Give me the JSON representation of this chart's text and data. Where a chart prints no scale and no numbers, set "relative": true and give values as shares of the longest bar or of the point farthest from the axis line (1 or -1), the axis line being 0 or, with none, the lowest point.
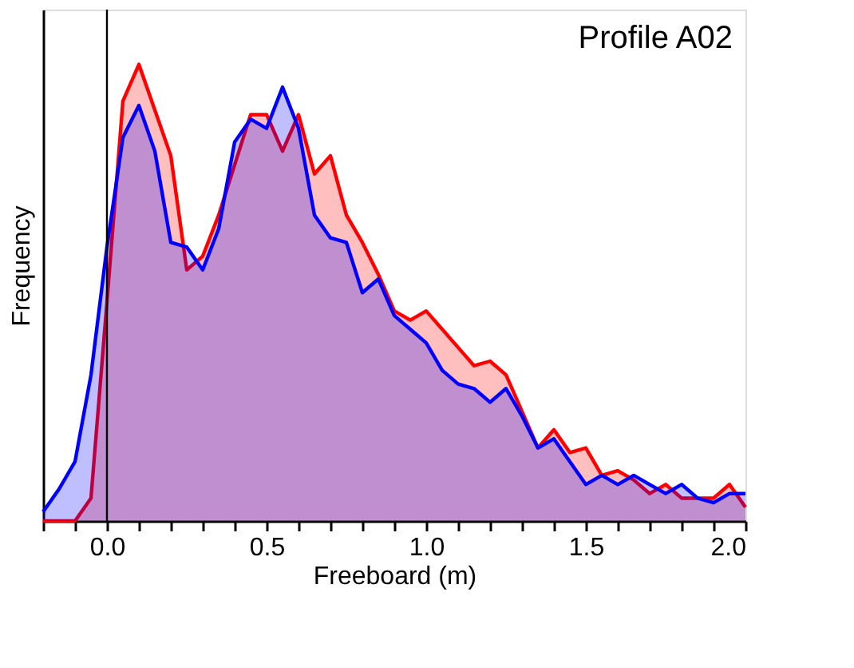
{
  "chart_data": {
    "type": "area",
    "title": "Profile A02",
    "xlabel": "Freeboard (m)",
    "ylabel": "Frequency",
    "relative": true,
    "x": [
      -0.2,
      -0.15,
      -0.1,
      -0.05,
      0.0,
      0.05,
      0.1,
      0.15,
      0.2,
      0.25,
      0.3,
      0.35,
      0.4,
      0.45,
      0.5,
      0.55,
      0.6,
      0.65,
      0.7,
      0.75,
      0.8,
      0.85,
      0.9,
      0.95,
      1.0,
      1.05,
      1.1,
      1.15,
      1.2,
      1.25,
      1.3,
      1.35,
      1.4,
      1.45,
      1.5,
      1.55,
      1.6,
      1.65,
      1.7,
      1.75,
      1.8,
      1.85,
      1.9,
      1.95,
      2.0
    ],
    "series": [
      {
        "color": "#ff0000",
        "values": [
          0,
          0,
          0,
          0.05,
          0.48,
          0.92,
          1.0,
          0.9,
          0.8,
          0.55,
          0.58,
          0.67,
          0.78,
          0.89,
          0.89,
          0.81,
          0.89,
          0.76,
          0.8,
          0.67,
          0.61,
          0.54,
          0.46,
          0.44,
          0.46,
          0.42,
          0.38,
          0.34,
          0.35,
          0.32,
          0.24,
          0.16,
          0.2,
          0.15,
          0.16,
          0.1,
          0.11,
          0.09,
          0.06,
          0.08,
          0.05,
          0.05,
          0.05,
          0.08,
          0.03
        ]
      },
      {
        "color": "#0000ff",
        "values": [
          0.02,
          0.07,
          0.13,
          0.32,
          0.6,
          0.84,
          0.91,
          0.81,
          0.61,
          0.6,
          0.55,
          0.64,
          0.83,
          0.88,
          0.86,
          0.95,
          0.86,
          0.67,
          0.62,
          0.61,
          0.5,
          0.53,
          0.45,
          0.42,
          0.39,
          0.33,
          0.3,
          0.29,
          0.26,
          0.29,
          0.23,
          0.16,
          0.18,
          0.13,
          0.08,
          0.1,
          0.08,
          0.1,
          0.08,
          0.06,
          0.08,
          0.05,
          0.04,
          0.06,
          0.06
        ]
      }
    ],
    "xlim": [
      -0.2,
      2.0
    ],
    "xticks": [
      {
        "value": -0.2,
        "label": null
      },
      {
        "value": -0.1,
        "label": null
      },
      {
        "value": 0.0,
        "label": "0.0"
      },
      {
        "value": 0.1,
        "label": null
      },
      {
        "value": 0.2,
        "label": null
      },
      {
        "value": 0.3,
        "label": null
      },
      {
        "value": 0.4,
        "label": null
      },
      {
        "value": 0.5,
        "label": "0.5"
      },
      {
        "value": 0.6,
        "label": null
      },
      {
        "value": 0.7,
        "label": null
      },
      {
        "value": 0.8,
        "label": null
      },
      {
        "value": 0.9,
        "label": null
      },
      {
        "value": 1.0,
        "label": "1.0"
      },
      {
        "value": 1.1,
        "label": null
      },
      {
        "value": 1.2,
        "label": null
      },
      {
        "value": 1.3,
        "label": null
      },
      {
        "value": 1.4,
        "label": null
      },
      {
        "value": 1.5,
        "label": "1.5"
      },
      {
        "value": 1.6,
        "label": null
      },
      {
        "value": 1.7,
        "label": null
      },
      {
        "value": 1.8,
        "label": null
      },
      {
        "value": 1.9,
        "label": null
      },
      {
        "value": 2.0,
        "label": "2.0"
      }
    ],
    "ref_lines": [
      {
        "axis": "x",
        "value": 0.0,
        "color": "#000000"
      }
    ],
    "grid": false
  }
}
